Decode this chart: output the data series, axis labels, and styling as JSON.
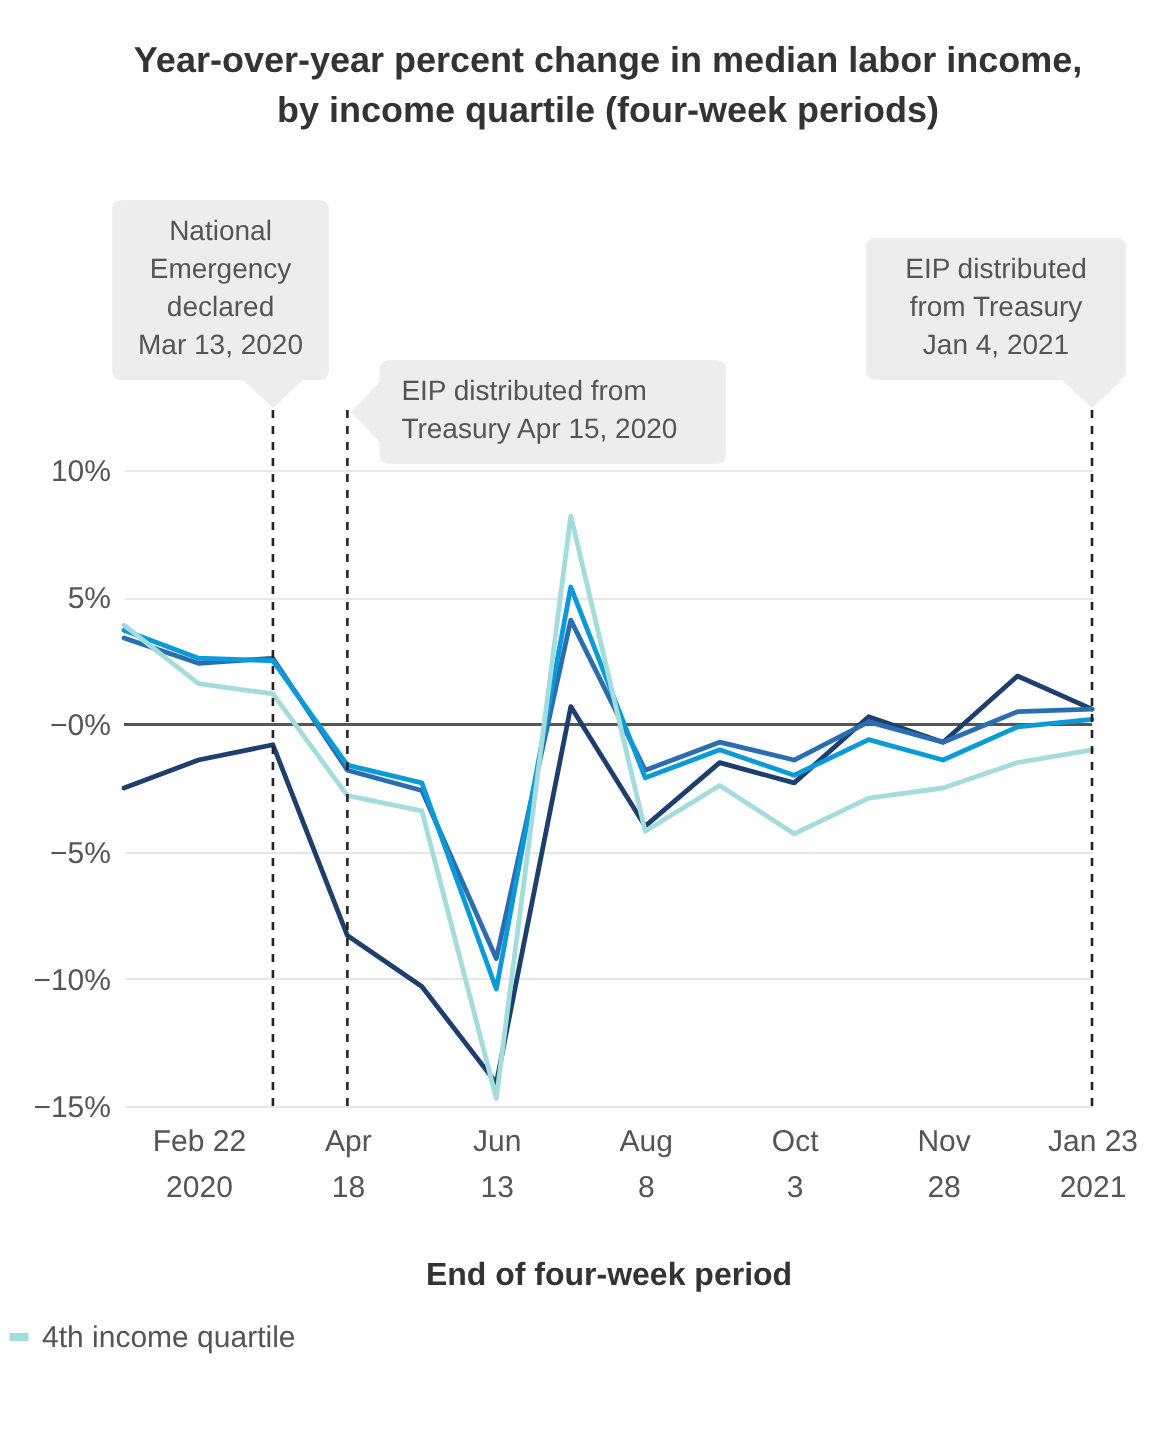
{
  "chart_data": {
    "type": "line",
    "title": "Year-over-year percent change in median labor income,\nby income quartile (four-week periods)",
    "xlabel": "End of four-week period",
    "x": [
      "2020-01-25",
      "2020-02-22",
      "2020-03-21",
      "2020-04-18",
      "2020-05-16",
      "2020-06-13",
      "2020-07-11",
      "2020-08-08",
      "2020-09-05",
      "2020-10-03",
      "2020-10-31",
      "2020-11-28",
      "2020-12-26",
      "2021-01-23"
    ],
    "series": [
      {
        "color": "#1c3f6e",
        "values": [
          -2.5,
          -1.4,
          -0.8,
          -8.3,
          -10.3,
          -14.1,
          0.7,
          -4.0,
          -1.5,
          -2.3,
          0.3,
          -0.7,
          1.9,
          0.6
        ]
      },
      {
        "color": "#2a6db0",
        "values": [
          3.4,
          2.4,
          2.6,
          -1.8,
          -2.6,
          -9.2,
          4.1,
          -1.8,
          -0.7,
          -1.4,
          0.1,
          -0.7,
          0.5,
          0.6
        ]
      },
      {
        "color": "#0b9ad8",
        "values": [
          3.7,
          2.6,
          2.5,
          -1.6,
          -2.3,
          -10.4,
          5.4,
          -2.1,
          -1.0,
          -2.0,
          -0.6,
          -1.4,
          -0.1,
          0.2
        ]
      },
      {
        "name": "4th income quartile",
        "color": "#a3dcdd",
        "values": [
          3.9,
          1.6,
          1.2,
          -2.8,
          -3.4,
          -14.7,
          8.2,
          -4.2,
          -2.4,
          -4.3,
          -2.9,
          -2.5,
          -1.5,
          -1.0
        ]
      }
    ],
    "xlim": [
      "2020-01-25",
      "2021-01-23"
    ],
    "xticks": [
      {
        "value": "2020-02-22",
        "label": "Feb 22\n2020"
      },
      {
        "value": "2020-04-18",
        "label": "Apr\n18"
      },
      {
        "value": "2020-06-13",
        "label": "Jun\n13"
      },
      {
        "value": "2020-08-08",
        "label": "Aug\n8"
      },
      {
        "value": "2020-10-03",
        "label": "Oct\n3"
      },
      {
        "value": "2020-11-28",
        "label": "Nov\n28"
      },
      {
        "value": "2021-01-23",
        "label": "Jan 23\n2021"
      }
    ],
    "ylim": [
      -15,
      10
    ],
    "yticks": [
      {
        "value": -15,
        "label": "−15%"
      },
      {
        "value": -10,
        "label": "−10%"
      },
      {
        "value": -5,
        "label": "−5%"
      },
      {
        "value": 0,
        "label": "−0%"
      },
      {
        "value": 5,
        "label": "5%"
      },
      {
        "value": 10,
        "label": "10%"
      }
    ],
    "ref_lines": [
      {
        "axis": "x",
        "value": "2020-03-21",
        "label": "National\nEmergency\ndeclared\nMar 13, 2020",
        "color": "#222222",
        "line_style": "dashed"
      },
      {
        "axis": "x",
        "value": "2020-04-18",
        "label": "EIP distributed from\nTreasury Apr 15, 2020",
        "color": "#222222",
        "line_style": "dashed"
      },
      {
        "axis": "x",
        "value": "2021-01-23",
        "label": "EIP distributed\nfrom Treasury\nJan 4, 2021",
        "color": "#222222",
        "line_style": "dashed"
      },
      {
        "axis": "y",
        "value": 0,
        "color": "#555555",
        "line_style": "solid"
      }
    ],
    "grid": "y",
    "legend": "bottom"
  }
}
